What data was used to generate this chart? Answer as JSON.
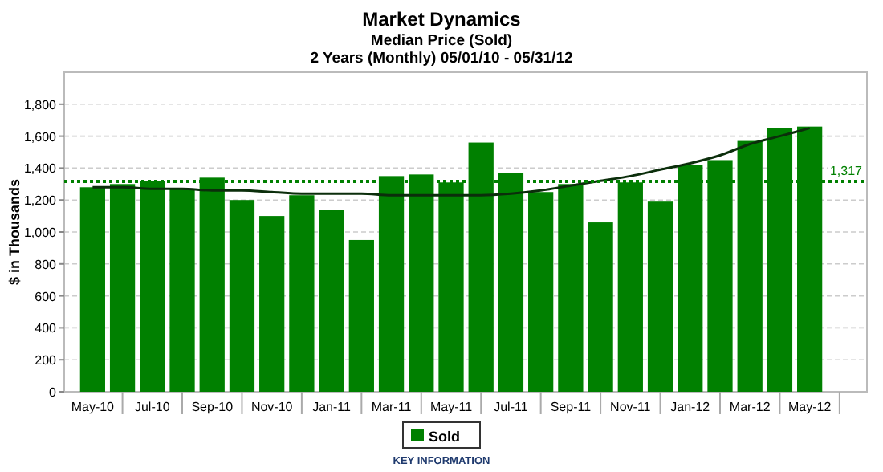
{
  "chart_data": {
    "type": "bar",
    "title": "Market Dynamics",
    "subtitle": "Median Price (Sold)\n2 Years (Monthly) 05/01/10 - 05/31/12",
    "ylabel": "$ in Thousands",
    "legend_title": "KEY INFORMATION",
    "categories": [
      "May-10",
      null,
      "Jul-10",
      null,
      "Sep-10",
      null,
      "Nov-10",
      null,
      "Jan-11",
      null,
      "Mar-11",
      null,
      "May-11",
      null,
      "Jul-11",
      null,
      "Sep-11",
      null,
      "Nov-11",
      null,
      "Jan-12",
      null,
      "Mar-12",
      null,
      "May-12"
    ],
    "series": [
      {
        "name": "Sold",
        "color": "#008000",
        "values": [
          1280,
          1300,
          1320,
          1270,
          1340,
          1200,
          1100,
          1230,
          1140,
          950,
          1350,
          1360,
          1310,
          1560,
          1370,
          1250,
          1300,
          1060,
          1310,
          1190,
          1420,
          1450,
          1570,
          1650,
          1660
        ]
      },
      {
        "type": "line",
        "color": "#0b2e0b",
        "values": [
          1280,
          1280,
          1270,
          1270,
          1260,
          1260,
          1250,
          1240,
          1240,
          1240,
          1230,
          1230,
          1230,
          1230,
          1240,
          1260,
          1290,
          1320,
          1350,
          1390,
          1430,
          1480,
          1550,
          1600,
          1650
        ]
      }
    ],
    "ylim": [
      0,
      2000
    ],
    "yticks": [
      {
        "value": 0,
        "label": "0"
      },
      {
        "value": 200,
        "label": "200"
      },
      {
        "value": 400,
        "label": "400"
      },
      {
        "value": 600,
        "label": "600"
      },
      {
        "value": 800,
        "label": "800"
      },
      {
        "value": 1000,
        "label": "1,000"
      },
      {
        "value": 1200,
        "label": "1,200"
      },
      {
        "value": 1400,
        "label": "1,400"
      },
      {
        "value": 1600,
        "label": "1,600"
      },
      {
        "value": 1800,
        "label": "1,800"
      }
    ],
    "ref_lines": [
      {
        "axis": "y",
        "value": 1317,
        "label": "1,317",
        "color": "#008000",
        "line_style": "dotted"
      }
    ],
    "grid": "y",
    "legend": "bottom"
  }
}
